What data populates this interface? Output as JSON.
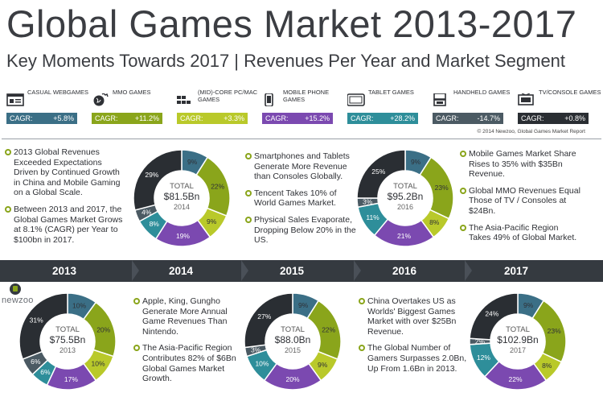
{
  "header": {
    "title": "Global Games Market 2013-2017",
    "subtitle": "Key Moments Towards 2017 | Revenues Per Year and Market Segment"
  },
  "segments": [
    {
      "name": "CASUAL WEBGAMES",
      "cagr_label": "CAGR:",
      "cagr": "+5.8%",
      "color": "#3b6f86",
      "icon": "browser-icon"
    },
    {
      "name": "MMO GAMES",
      "cagr_label": "CAGR:",
      "cagr": "+11.2%",
      "color": "#8aa51b",
      "icon": "globe-icon"
    },
    {
      "name": "(MID)-CORE PC/MAC GAMES",
      "cagr_label": "CAGR:",
      "cagr": "+3.3%",
      "color": "#b9c92a",
      "icon": "keyboard-icon"
    },
    {
      "name": "MOBILE PHONE GAMES",
      "cagr_label": "CAGR:",
      "cagr": "+15.2%",
      "color": "#7b49b0",
      "icon": "phone-icon"
    },
    {
      "name": "TABLET GAMES",
      "cagr_label": "CAGR:",
      "cagr": "+28.2%",
      "color": "#2e8e9a",
      "icon": "tablet-icon"
    },
    {
      "name": "HANDHELD GAMES",
      "cagr_label": "CAGR:",
      "cagr": "-14.7%",
      "color": "#4b5a63",
      "icon": "handheld-icon"
    },
    {
      "name": "TV/CONSOLE GAMES",
      "cagr_label": "CAGR:",
      "cagr": "+0.8%",
      "color": "#2a2e33",
      "icon": "tv-icon"
    }
  ],
  "copyright": "© 2014 Newzoo, Global Games Market Report",
  "logo": "newzoo",
  "years": [
    "2013",
    "2014",
    "2015",
    "2016",
    "2017"
  ],
  "notes": {
    "n2013": [
      "2013 Global Revenues Exceeded Expectations Driven by Continued Growth in China and Mobile Gaming on a Global Scale.",
      "Between 2013 and 2017, the Global Games Market Grows at 8.1% (CAGR) per Year to $100bn in 2017."
    ],
    "n2014": [
      "Apple, King, Gungho Generate More Annual Game Revenues Than Nintendo.",
      "The Asia-Pacific Region Contributes 82% of $6Bn Global Games Market Growth."
    ],
    "n2015": [
      "Smartphones and Tablets Generate More Revenue than Consoles Globally.",
      "Tencent Takes 10% of World Games Market.",
      "Physical Sales Evaporate, Dropping Below 20% in the US."
    ],
    "n2016": [
      "China Overtakes US as Worlds' Biggest Games Market with over $25Bn Revenue.",
      "The Global Number of Gamers Surpasses 2.0Bn, Up From 1.6Bn in 2013."
    ],
    "n2017": [
      "Mobile Games Market Share Rises to 35% with $35Bn Revenue.",
      "Global MMO Revenues Equal Those of TV / Consoles at $24Bn.",
      "The Asia-Pacific Region Takes 49% of Global Market."
    ]
  },
  "chart_data": [
    {
      "type": "pie",
      "year": "2013",
      "total_label": "TOTAL",
      "total": "$75.5Bn",
      "categories": [
        "Casual Webgames",
        "MMO Games",
        "(Mid)-Core PC/Mac Games",
        "Mobile Phone Games",
        "Tablet Games",
        "Handheld Games",
        "TV/Console Games"
      ],
      "values": [
        10,
        20,
        10,
        17,
        6,
        6,
        31
      ]
    },
    {
      "type": "pie",
      "year": "2014",
      "total_label": "TOTAL",
      "total": "$81.5Bn",
      "categories": [
        "Casual Webgames",
        "MMO Games",
        "(Mid)-Core PC/Mac Games",
        "Mobile Phone Games",
        "Tablet Games",
        "Handheld Games",
        "TV/Console Games"
      ],
      "values": [
        9,
        22,
        9,
        19,
        8,
        4,
        29
      ]
    },
    {
      "type": "pie",
      "year": "2015",
      "total_label": "TOTAL",
      "total": "$88.0Bn",
      "categories": [
        "Casual Webgames",
        "MMO Games",
        "(Mid)-Core PC/Mac Games",
        "Mobile Phone Games",
        "Tablet Games",
        "Handheld Games",
        "TV/Console Games"
      ],
      "values": [
        9,
        22,
        9,
        20,
        10,
        3,
        27
      ]
    },
    {
      "type": "pie",
      "year": "2016",
      "total_label": "TOTAL",
      "total": "$95.2Bn",
      "categories": [
        "Casual Webgames",
        "MMO Games",
        "(Mid)-Core PC/Mac Games",
        "Mobile Phone Games",
        "Tablet Games",
        "Handheld Games",
        "TV/Console Games"
      ],
      "values": [
        9,
        23,
        8,
        21,
        11,
        3,
        25
      ]
    },
    {
      "type": "pie",
      "year": "2017",
      "total_label": "TOTAL",
      "total": "$102.9Bn",
      "categories": [
        "Casual Webgames",
        "MMO Games",
        "(Mid)-Core PC/Mac Games",
        "Mobile Phone Games",
        "Tablet Games",
        "Handheld Games",
        "TV/Console Games"
      ],
      "values": [
        9,
        23,
        8,
        22,
        12,
        2,
        24
      ]
    }
  ]
}
